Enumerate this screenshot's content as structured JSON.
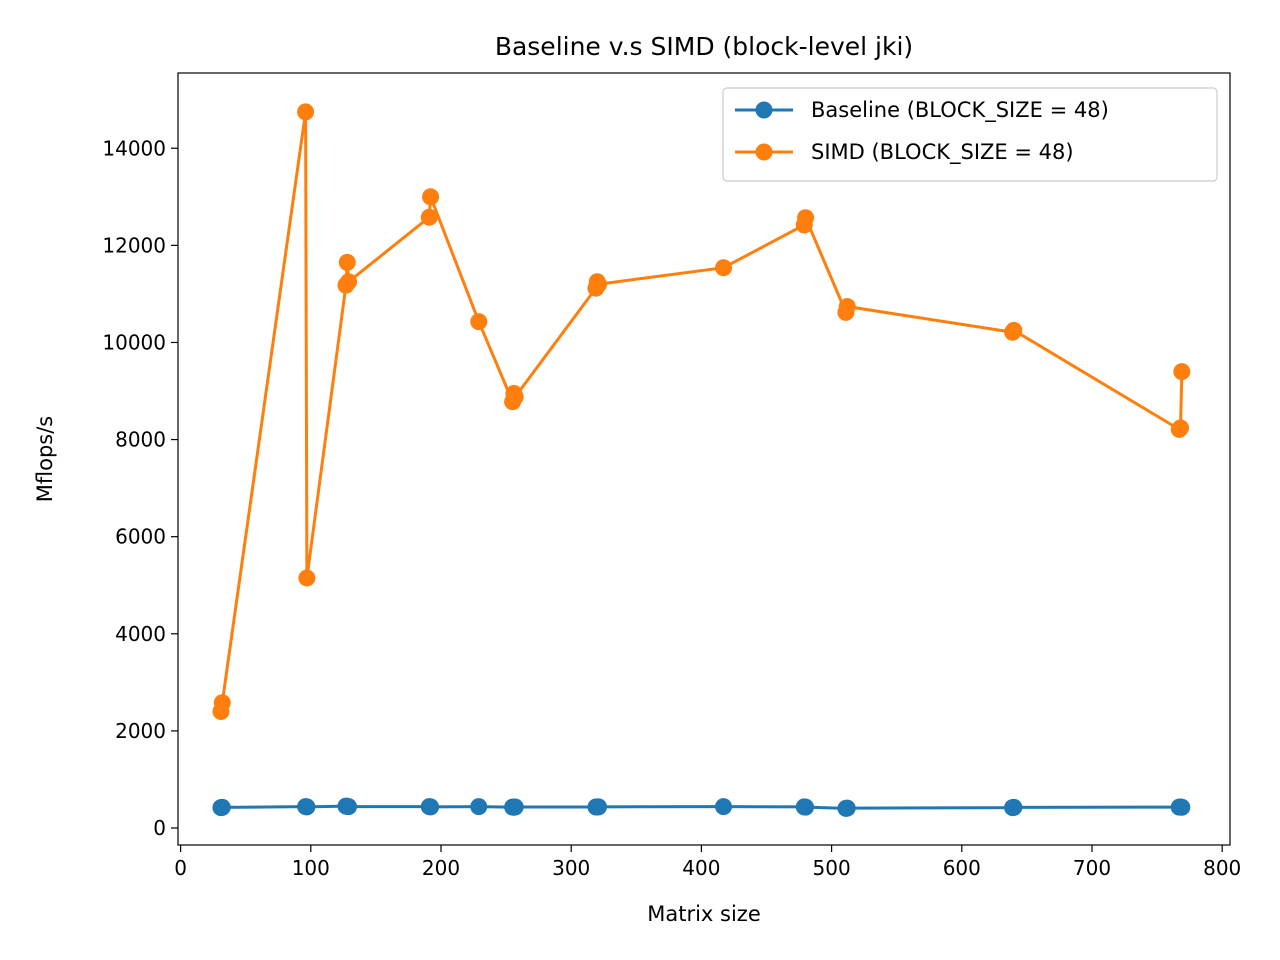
{
  "chart_data": {
    "type": "line",
    "title": "Baseline v.s SIMD (block-level jki)",
    "xlabel": "Matrix size",
    "ylabel": "Mflops/s",
    "xlim": [
      -2,
      806
    ],
    "ylim": [
      -350,
      15550
    ],
    "xticks": [
      0,
      100,
      200,
      300,
      400,
      500,
      600,
      700,
      800
    ],
    "yticks": [
      0,
      2000,
      4000,
      6000,
      8000,
      10000,
      12000,
      14000
    ],
    "grid": false,
    "legend_position": "upper right",
    "series": [
      {
        "name": "Baseline (BLOCK_SIZE = 48)",
        "color": "#1f77b4",
        "x": [
          31,
          32,
          96,
          97,
          127,
          128,
          129,
          191,
          192,
          229,
          255,
          256,
          257,
          319,
          320,
          321,
          417,
          479,
          480,
          511,
          512,
          639,
          640,
          767,
          768,
          769
        ],
        "y": [
          420,
          425,
          440,
          435,
          450,
          445,
          440,
          440,
          435,
          440,
          430,
          428,
          432,
          432,
          434,
          436,
          440,
          435,
          430,
          405,
          410,
          420,
          425,
          430,
          432,
          428
        ]
      },
      {
        "name": "SIMD (BLOCK_SIZE = 48)",
        "color": "#ff7f0e",
        "x": [
          31,
          32,
          96,
          97,
          127,
          128,
          129,
          191,
          192,
          229,
          255,
          256,
          257,
          319,
          320,
          321,
          417,
          479,
          480,
          511,
          512,
          639,
          640,
          767,
          768,
          769
        ],
        "y": [
          2400,
          2580,
          14750,
          5150,
          11180,
          11650,
          11250,
          12580,
          13000,
          10430,
          8780,
          8950,
          8880,
          11120,
          11250,
          11200,
          11540,
          12420,
          12570,
          10620,
          10740,
          10210,
          10250,
          8210,
          8240,
          9400
        ]
      }
    ]
  }
}
